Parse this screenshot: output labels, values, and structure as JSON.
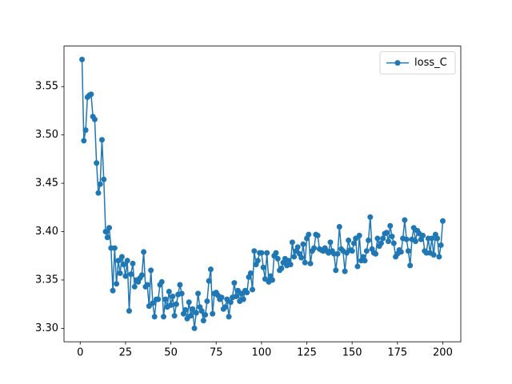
{
  "chart_data": {
    "type": "line",
    "x": [
      1,
      2,
      3,
      4,
      5,
      6,
      7,
      8,
      9,
      10,
      11,
      12,
      13,
      14,
      15,
      16,
      17,
      18,
      19,
      20,
      21,
      22,
      23,
      24,
      25,
      26,
      27,
      28,
      29,
      30,
      31,
      32,
      33,
      34,
      35,
      36,
      37,
      38,
      39,
      40,
      41,
      42,
      43,
      44,
      45,
      46,
      47,
      48,
      49,
      50,
      51,
      52,
      53,
      54,
      55,
      56,
      57,
      58,
      59,
      60,
      61,
      62,
      63,
      64,
      65,
      66,
      67,
      68,
      69,
      70,
      71,
      72,
      73,
      74,
      75,
      76,
      77,
      78,
      79,
      80,
      81,
      82,
      83,
      84,
      85,
      86,
      87,
      88,
      89,
      90,
      91,
      92,
      93,
      94,
      95,
      96,
      97,
      98,
      99,
      100,
      101,
      102,
      103,
      104,
      105,
      106,
      107,
      108,
      109,
      110,
      111,
      112,
      113,
      114,
      115,
      116,
      117,
      118,
      119,
      120,
      121,
      122,
      123,
      124,
      125,
      126,
      127,
      128,
      129,
      130,
      131,
      132,
      133,
      134,
      135,
      136,
      137,
      138,
      139,
      140,
      141,
      142,
      143,
      144,
      145,
      146,
      147,
      148,
      149,
      150,
      151,
      152,
      153,
      154,
      155,
      156,
      157,
      158,
      159,
      160,
      161,
      162,
      163,
      164,
      165,
      166,
      167,
      168,
      169,
      170,
      171,
      172,
      173,
      174,
      175,
      176,
      177,
      178,
      179,
      180,
      181,
      182,
      183,
      184,
      185,
      186,
      187,
      188,
      189,
      190,
      191,
      192,
      193,
      194,
      195,
      196,
      197,
      198,
      199,
      200
    ],
    "series": [
      {
        "name": "loss_C",
        "color": "#1f77b4",
        "values": [
          3.578,
          3.494,
          3.505,
          3.539,
          3.541,
          3.542,
          3.519,
          3.516,
          3.471,
          3.44,
          3.449,
          3.495,
          3.454,
          3.4,
          3.394,
          3.404,
          3.383,
          3.339,
          3.383,
          3.346,
          3.37,
          3.357,
          3.374,
          3.366,
          3.354,
          3.37,
          3.318,
          3.356,
          3.367,
          3.343,
          3.35,
          3.348,
          3.352,
          3.355,
          3.379,
          3.343,
          3.345,
          3.323,
          3.36,
          3.326,
          3.312,
          3.33,
          3.33,
          3.345,
          3.348,
          3.312,
          3.33,
          3.322,
          3.338,
          3.324,
          3.333,
          3.313,
          3.325,
          3.335,
          3.345,
          3.336,
          3.315,
          3.319,
          3.31,
          3.327,
          3.313,
          3.32,
          3.3,
          3.316,
          3.336,
          3.322,
          3.318,
          3.308,
          3.314,
          3.328,
          3.349,
          3.361,
          3.315,
          3.336,
          3.337,
          3.334,
          3.33,
          3.332,
          3.32,
          3.322,
          3.33,
          3.312,
          3.327,
          3.332,
          3.347,
          3.333,
          3.339,
          3.328,
          3.336,
          3.33,
          3.339,
          3.337,
          3.353,
          3.357,
          3.34,
          3.38,
          3.366,
          3.37,
          3.378,
          3.378,
          3.363,
          3.351,
          3.378,
          3.348,
          3.354,
          3.35,
          3.375,
          3.378,
          3.372,
          3.36,
          3.362,
          3.368,
          3.372,
          3.365,
          3.37,
          3.366,
          3.389,
          3.374,
          3.38,
          3.384,
          3.377,
          3.373,
          3.387,
          3.368,
          3.393,
          3.397,
          3.367,
          3.38,
          3.383,
          3.397,
          3.396,
          3.382,
          3.381,
          3.38,
          3.383,
          3.38,
          3.378,
          3.389,
          3.38,
          3.377,
          3.36,
          3.377,
          3.405,
          3.382,
          3.38,
          3.359,
          3.378,
          3.391,
          3.381,
          3.38,
          3.388,
          3.393,
          3.364,
          3.396,
          3.37,
          3.374,
          3.37,
          3.38,
          3.391,
          3.415,
          3.382,
          3.378,
          3.377,
          3.393,
          3.385,
          3.388,
          3.393,
          3.398,
          3.399,
          3.39,
          3.406,
          3.395,
          3.388,
          3.374,
          3.377,
          3.381,
          3.379,
          3.393,
          3.412,
          3.392,
          3.38,
          3.365,
          3.392,
          3.404,
          3.39,
          3.401,
          3.398,
          3.392,
          3.396,
          3.38,
          3.378,
          3.393,
          3.378,
          3.393,
          3.376,
          3.397,
          3.393,
          3.374,
          3.386,
          3.411
        ]
      }
    ],
    "xlim": [
      -8.95,
      209.95
    ],
    "ylim": [
      3.2861,
      3.5919
    ],
    "xticks": [
      0,
      25,
      50,
      75,
      100,
      125,
      150,
      175,
      200
    ],
    "yticks": [
      {
        "value": 3.3,
        "label": "3.30"
      },
      3.35,
      {
        "value": 3.4,
        "label": "3.40"
      },
      3.45,
      {
        "value": 3.5,
        "label": "3.50"
      },
      3.55
    ],
    "legend": "upper right"
  }
}
